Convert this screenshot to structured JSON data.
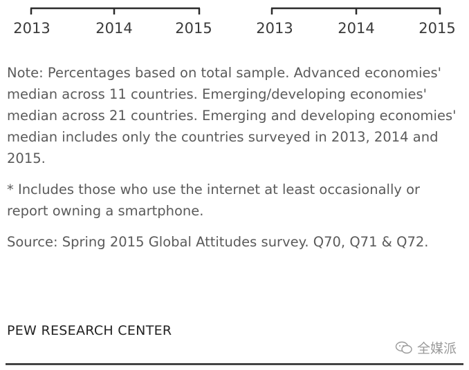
{
  "chart_data": [
    {
      "type": "line",
      "x_ticks": [
        "2013",
        "2014",
        "2015"
      ]
    },
    {
      "type": "line",
      "x_ticks": [
        "2013",
        "2014",
        "2015"
      ]
    }
  ],
  "footnotes": {
    "note": "Note: Percentages based on total sample. Advanced economies' median across 11 countries. Emerging/developing economies' median across 21 countries. Emerging and developing economies' median includes only the countries surveyed in 2013, 2014 and 2015.",
    "asterisk": "* Includes those who use the internet at least occasionally or report owning a smartphone.",
    "source": "Source: Spring 2015 Global Attitudes survey. Q70, Q71 & Q72."
  },
  "brand": "PEW RESEARCH CENTER",
  "watermark": {
    "text": "全媒派",
    "icon": "wechat-icon"
  },
  "colors": {
    "axis": "#2b2b2b",
    "text": "#5a5a5a",
    "brand": "#222222",
    "watermark": "#9a9a9a"
  }
}
